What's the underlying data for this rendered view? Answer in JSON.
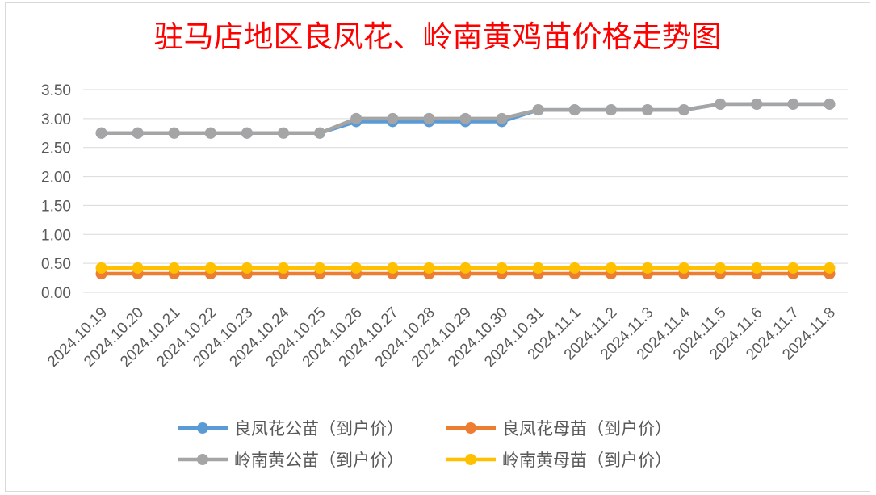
{
  "chart_data": {
    "type": "line",
    "title": "驻马店地区良凤花、岭南黄鸡苗价格走势图",
    "title_color": "#ff0000",
    "xlabel": "",
    "ylabel": "",
    "ylim": [
      0,
      3.5
    ],
    "y_ticks": [
      "0.00",
      "0.50",
      "1.00",
      "1.50",
      "2.00",
      "2.50",
      "3.00",
      "3.50"
    ],
    "grid": true,
    "legend_position": "bottom",
    "categories": [
      "2024.10.19",
      "2024.10.20",
      "2024.10.21",
      "2024.10.22",
      "2024.10.23",
      "2024.10.24",
      "2024.10.25",
      "2024.10.26",
      "2024.10.27",
      "2024.10.28",
      "2024.10.29",
      "2024.10.30",
      "2024.10.31",
      "2024.11.1",
      "2024.11.2",
      "2024.11.3",
      "2024.11.4",
      "2024.11.5",
      "2024.11.6",
      "2024.11.7",
      "2024.11.8"
    ],
    "series": [
      {
        "name": "良凤花公苗（到户价）",
        "color": "#5b9bd5",
        "values": [
          2.75,
          2.75,
          2.75,
          2.75,
          2.75,
          2.75,
          2.75,
          2.95,
          2.95,
          2.95,
          2.95,
          2.95,
          3.15,
          3.15,
          3.15,
          3.15,
          3.15,
          3.25,
          3.25,
          3.25,
          3.25
        ]
      },
      {
        "name": "良凤花母苗（到户价）",
        "color": "#ed7d31",
        "values": [
          0.32,
          0.32,
          0.32,
          0.32,
          0.32,
          0.32,
          0.32,
          0.32,
          0.32,
          0.32,
          0.32,
          0.32,
          0.32,
          0.32,
          0.32,
          0.32,
          0.32,
          0.32,
          0.32,
          0.32,
          0.32
        ]
      },
      {
        "name": "岭南黄公苗（到户价）",
        "color": "#a5a5a5",
        "values": [
          2.75,
          2.75,
          2.75,
          2.75,
          2.75,
          2.75,
          2.75,
          3.0,
          3.0,
          3.0,
          3.0,
          3.0,
          3.15,
          3.15,
          3.15,
          3.15,
          3.15,
          3.25,
          3.25,
          3.25,
          3.25
        ]
      },
      {
        "name": "岭南黄母苗（到户价）",
        "color": "#ffc000",
        "values": [
          0.42,
          0.42,
          0.42,
          0.42,
          0.42,
          0.42,
          0.42,
          0.42,
          0.42,
          0.42,
          0.42,
          0.42,
          0.42,
          0.42,
          0.42,
          0.42,
          0.42,
          0.42,
          0.42,
          0.42,
          0.42
        ]
      }
    ]
  }
}
